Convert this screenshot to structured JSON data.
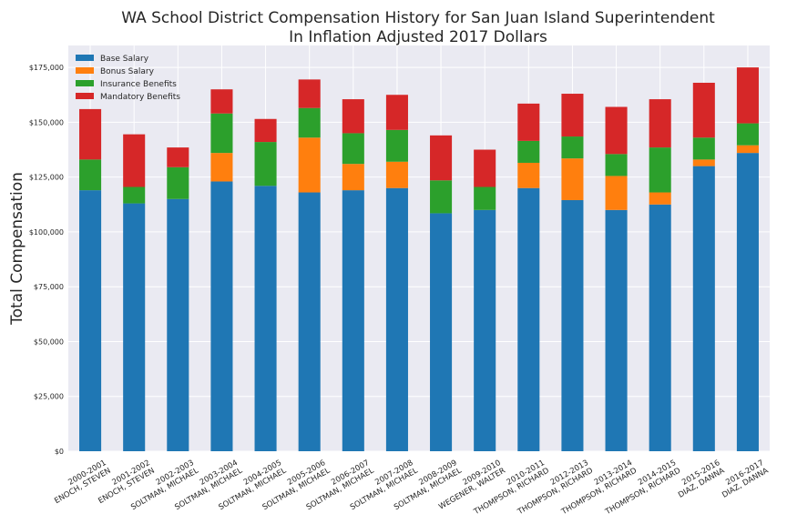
{
  "chart_data": {
    "type": "bar",
    "stacked": true,
    "title": "WA School District Compensation History for San Juan Island Superintendent\nIn Inflation Adjusted 2017 Dollars",
    "xlabel": "",
    "ylabel": "Total Compensation",
    "ylim": [
      0,
      185000
    ],
    "yticks": [
      0,
      25000,
      50000,
      75000,
      100000,
      125000,
      150000,
      175000
    ],
    "ytick_labels": [
      "$0",
      "$25,000",
      "$50,000",
      "$75,000",
      "$100,000",
      "$125,000",
      "$150,000",
      "$175,000"
    ],
    "grid": true,
    "legend_position": "top-left",
    "categories": [
      "2000-2001\nENOCH, STEVEN",
      "2001-2002\nENOCH, STEVEN",
      "2002-2003\nSOLTMAN, MICHAEL",
      "2003-2004\nSOLTMAN, MICHAEL",
      "2004-2005\nSOLTMAN, MICHAEL",
      "2005-2006\nSOLTMAN, MICHAEL",
      "2006-2007\nSOLTMAN, MICHAEL",
      "2007-2008\nSOLTMAN, MICHAEL",
      "2008-2009\nSOLTMAN, MICHAEL",
      "2009-2010\nWEGENER, WALTER",
      "2010-2011\nTHOMPSON, RICHARD",
      "2012-2013\nTHOMPSON, RICHARD",
      "2013-2014\nTHOMPSON, RICHARD",
      "2014-2015\nTHOMPSON, RICHARD",
      "2015-2016\nDIAZ, DANNA",
      "2016-2017\nDIAZ, DANNA"
    ],
    "series": [
      {
        "name": "Base Salary",
        "color": "#1f77b4",
        "values": [
          119000,
          113000,
          115000,
          123000,
          121000,
          118000,
          119000,
          120000,
          108500,
          110000,
          120000,
          114500,
          110000,
          112500,
          130000,
          136000
        ]
      },
      {
        "name": "Bonus Salary",
        "color": "#ff7f0e",
        "values": [
          0,
          0,
          0,
          13000,
          0,
          25000,
          12000,
          12000,
          0,
          0,
          11500,
          19000,
          15500,
          5500,
          3000,
          3500
        ]
      },
      {
        "name": "Insurance Benefits",
        "color": "#2ca02c",
        "values": [
          14000,
          7500,
          14500,
          18000,
          20000,
          13500,
          14000,
          14500,
          15000,
          10500,
          10000,
          10000,
          10000,
          20500,
          10000,
          10000
        ]
      },
      {
        "name": "Mandatory Benefits",
        "color": "#d62728",
        "values": [
          23000,
          24000,
          9000,
          11000,
          10500,
          13000,
          15500,
          16000,
          20500,
          17000,
          17000,
          19500,
          21500,
          22000,
          25000,
          25500
        ]
      }
    ]
  }
}
